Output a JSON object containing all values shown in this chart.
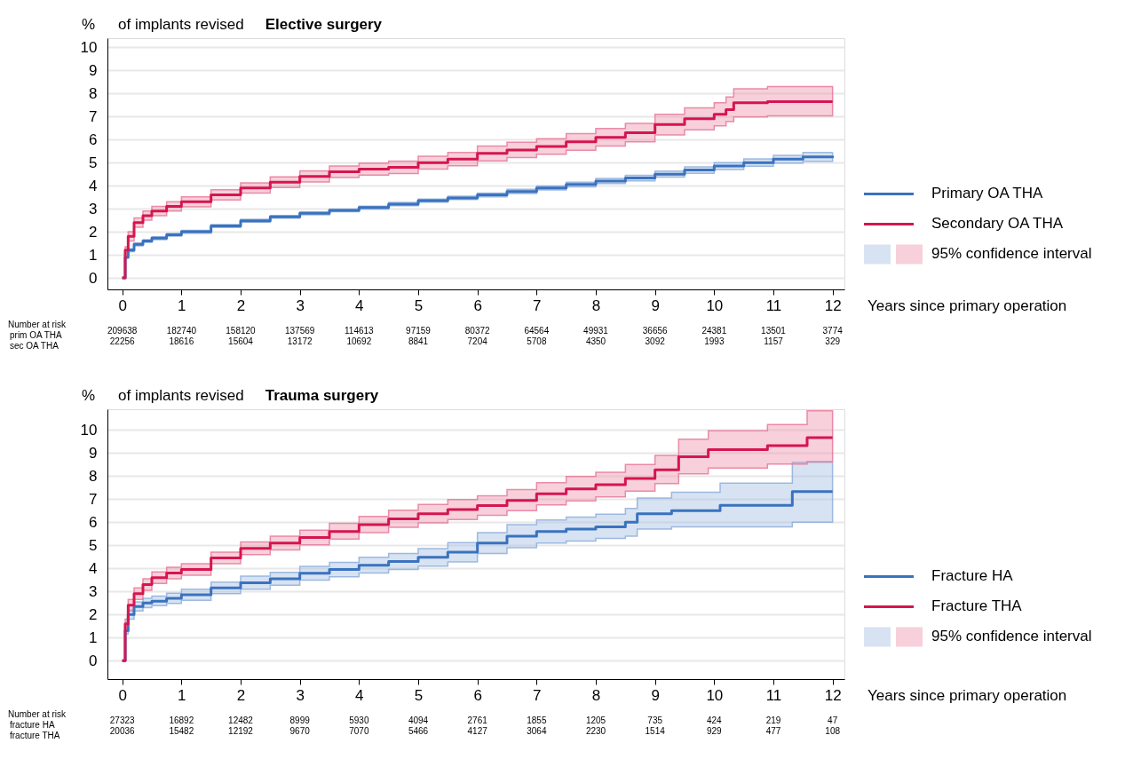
{
  "chart_data": [
    {
      "type": "step",
      "title": "Elective surgery",
      "subtitle": "of implants revised",
      "ylabel": "%",
      "xlabel": "Years since primary operation",
      "xlim": [
        -0.25,
        12.2
      ],
      "xticks": [
        0,
        1,
        2,
        3,
        4,
        5,
        6,
        7,
        8,
        9,
        10,
        11,
        12
      ],
      "ylim": [
        -0.5,
        10.4
      ],
      "yticks": [
        0,
        1,
        2,
        3,
        4,
        5,
        6,
        7,
        8,
        9,
        10
      ],
      "grid": "y",
      "legend": "right",
      "line_style": "solid",
      "series": [
        {
          "name": "Primary OA THA",
          "color": "#3a72bf",
          "x": [
            0,
            0.05,
            0.1,
            0.2,
            0.35,
            0.5,
            0.75,
            1,
            1.5,
            2,
            2.5,
            3,
            3.5,
            4,
            4.5,
            5,
            5.5,
            6,
            6.5,
            7,
            7.5,
            8,
            8.5,
            9,
            9.5,
            10,
            10.5,
            11,
            11.5,
            12
          ],
          "values": [
            0,
            0.9,
            1.2,
            1.45,
            1.6,
            1.72,
            1.87,
            2.0,
            2.25,
            2.48,
            2.65,
            2.8,
            2.93,
            3.05,
            3.2,
            3.35,
            3.47,
            3.6,
            3.75,
            3.9,
            4.05,
            4.2,
            4.33,
            4.5,
            4.68,
            4.85,
            5.0,
            5.15,
            5.25,
            5.3
          ],
          "lower": [
            0,
            0.85,
            1.14,
            1.39,
            1.54,
            1.66,
            1.81,
            1.94,
            2.19,
            2.42,
            2.59,
            2.74,
            2.87,
            2.99,
            3.13,
            3.28,
            3.4,
            3.52,
            3.66,
            3.81,
            3.95,
            4.09,
            4.21,
            4.37,
            4.54,
            4.7,
            4.84,
            4.98,
            5.06,
            5.12
          ],
          "upper": [
            0,
            0.95,
            1.26,
            1.51,
            1.66,
            1.78,
            1.93,
            2.06,
            2.31,
            2.54,
            2.71,
            2.86,
            2.99,
            3.11,
            3.27,
            3.42,
            3.54,
            3.68,
            3.84,
            3.99,
            4.15,
            4.31,
            4.45,
            4.63,
            4.82,
            5.0,
            5.16,
            5.32,
            5.44,
            5.45
          ]
        },
        {
          "name": "Secondary OA THA",
          "color": "#d6154f",
          "x": [
            0,
            0.05,
            0.1,
            0.2,
            0.35,
            0.5,
            0.75,
            1,
            1.5,
            2,
            2.5,
            3,
            3.5,
            4,
            4.5,
            5,
            5.5,
            6,
            6.5,
            7,
            7.5,
            8,
            8.5,
            9,
            9.5,
            10,
            10.2,
            10.33,
            10.9,
            12
          ],
          "values": [
            0,
            1.2,
            1.8,
            2.4,
            2.7,
            2.9,
            3.1,
            3.3,
            3.6,
            3.9,
            4.15,
            4.4,
            4.6,
            4.72,
            4.8,
            5.0,
            5.15,
            5.4,
            5.55,
            5.7,
            5.9,
            6.1,
            6.3,
            6.65,
            6.9,
            7.1,
            7.3,
            7.6,
            7.65,
            7.65
          ],
          "lower": [
            0,
            1.05,
            1.6,
            2.2,
            2.5,
            2.7,
            2.9,
            3.08,
            3.38,
            3.68,
            3.92,
            4.16,
            4.35,
            4.46,
            4.53,
            4.72,
            4.86,
            5.08,
            5.22,
            5.36,
            5.54,
            5.72,
            5.9,
            6.2,
            6.42,
            6.6,
            6.78,
            6.98,
            7.03,
            7.03
          ],
          "upper": [
            0,
            1.35,
            2.0,
            2.6,
            2.9,
            3.1,
            3.3,
            3.52,
            3.82,
            4.12,
            4.38,
            4.64,
            4.85,
            4.98,
            5.07,
            5.28,
            5.44,
            5.72,
            5.88,
            6.04,
            6.26,
            6.48,
            6.7,
            7.1,
            7.38,
            7.6,
            7.85,
            8.2,
            8.3,
            8.3
          ]
        }
      ],
      "annotations": [
        "95% confidence interval",
        "Number at risk",
        "prim OA THA",
        "209638",
        "182740",
        "158120",
        "137569",
        "114613",
        "97159",
        "80372",
        "64564",
        "49931",
        "36656",
        "24381",
        "13501",
        "3774",
        "sec OA THA",
        "22256",
        "18616",
        "15604",
        "13172",
        "10692",
        "8841",
        "7204",
        "5708",
        "4350",
        "3092",
        "1993",
        "1157",
        "329"
      ]
    },
    {
      "type": "step",
      "title": "Trauma surgery",
      "subtitle": "of implants revised",
      "ylabel": "%",
      "xlabel": "Years since primary operation",
      "xlim": [
        -0.25,
        12.2
      ],
      "xticks": [
        0,
        1,
        2,
        3,
        4,
        5,
        6,
        7,
        8,
        9,
        10,
        11,
        12
      ],
      "ylim": [
        -0.8,
        10.9
      ],
      "yticks": [
        0,
        1,
        2,
        3,
        4,
        5,
        6,
        7,
        8,
        9,
        10
      ],
      "grid": "y",
      "legend": "right",
      "line_style": "solid",
      "series": [
        {
          "name": "Fracture HA",
          "color": "#3a72bf",
          "x": [
            0,
            0.05,
            0.1,
            0.2,
            0.35,
            0.5,
            0.75,
            1,
            1.5,
            2,
            2.5,
            3,
            3.5,
            4,
            4.5,
            5,
            5.5,
            6,
            6.5,
            7,
            7.5,
            8,
            8.5,
            8.7,
            9.28,
            10.1,
            11.32,
            12
          ],
          "values": [
            0,
            1.3,
            2.0,
            2.35,
            2.5,
            2.58,
            2.7,
            2.86,
            3.15,
            3.38,
            3.55,
            3.79,
            3.95,
            4.14,
            4.3,
            4.48,
            4.7,
            5.1,
            5.4,
            5.6,
            5.7,
            5.8,
            6.0,
            6.37,
            6.5,
            6.73,
            7.33,
            7.33
          ],
          "lower": [
            0,
            1.15,
            1.8,
            2.15,
            2.3,
            2.38,
            2.48,
            2.62,
            2.9,
            3.1,
            3.27,
            3.49,
            3.64,
            3.8,
            3.95,
            4.1,
            4.28,
            4.65,
            4.9,
            5.1,
            5.18,
            5.3,
            5.4,
            5.7,
            5.8,
            5.8,
            6.0,
            6.0
          ],
          "upper": [
            0,
            1.45,
            2.2,
            2.55,
            2.7,
            2.8,
            2.92,
            3.1,
            3.4,
            3.66,
            3.83,
            4.09,
            4.26,
            4.48,
            4.65,
            4.86,
            5.12,
            5.55,
            5.9,
            6.1,
            6.22,
            6.35,
            6.6,
            7.05,
            7.3,
            7.7,
            8.6,
            8.6
          ]
        },
        {
          "name": "Fracture THA",
          "color": "#d6154f",
          "x": [
            0,
            0.05,
            0.1,
            0.2,
            0.35,
            0.5,
            0.75,
            1,
            1.5,
            2,
            2.5,
            3,
            3.5,
            4,
            4.5,
            5,
            5.5,
            6,
            6.5,
            7,
            7.5,
            8,
            8.5,
            9,
            9.4,
            9.9,
            10.9,
            11.57,
            12
          ],
          "values": [
            0,
            1.6,
            2.4,
            2.9,
            3.3,
            3.6,
            3.8,
            3.95,
            4.45,
            4.87,
            5.1,
            5.34,
            5.6,
            5.9,
            6.15,
            6.37,
            6.55,
            6.72,
            6.95,
            7.23,
            7.45,
            7.63,
            7.9,
            8.27,
            8.84,
            9.15,
            9.32,
            9.67,
            9.67
          ],
          "lower": [
            0,
            1.4,
            2.15,
            2.65,
            3.05,
            3.35,
            3.55,
            3.7,
            4.2,
            4.6,
            4.8,
            5.02,
            5.27,
            5.55,
            5.78,
            5.97,
            6.12,
            6.3,
            6.5,
            6.75,
            6.93,
            7.1,
            7.35,
            7.68,
            8.1,
            8.35,
            8.52,
            8.63,
            8.63
          ],
          "upper": [
            0,
            1.8,
            2.65,
            3.15,
            3.55,
            3.85,
            4.05,
            4.2,
            4.7,
            5.15,
            5.4,
            5.66,
            5.95,
            6.25,
            6.52,
            6.77,
            6.98,
            7.15,
            7.42,
            7.72,
            7.98,
            8.17,
            8.5,
            8.9,
            9.6,
            9.97,
            10.24,
            10.83,
            10.83
          ]
        }
      ],
      "annotations": [
        "95% confidence interval",
        "Number at risk",
        "fracture HA",
        "27323",
        "16892",
        "12482",
        "8999",
        "5930",
        "4094",
        "2761",
        "1855",
        "1205",
        "735",
        "424",
        "219",
        "47",
        "fracture THA",
        "20036",
        "15482",
        "12192",
        "9670",
        "7070",
        "5466",
        "4127",
        "3064",
        "2230",
        "1514",
        "929",
        "477",
        "108"
      ]
    }
  ]
}
